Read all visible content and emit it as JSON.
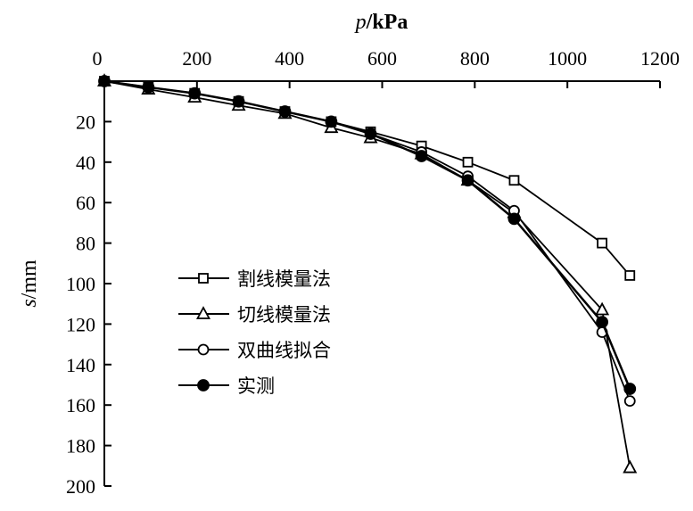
{
  "chart_data": {
    "type": "line",
    "xlabel_italic": "p",
    "xlabel_unit": "/kPa",
    "ylabel_italic": "s",
    "ylabel_unit": "/mm",
    "xlim": [
      0,
      1200
    ],
    "ylim": [
      0,
      200
    ],
    "y_inverted": true,
    "x_axis_position": "top",
    "grid": false,
    "legend_position": "lower-left",
    "xticks": [
      "0",
      "200",
      "400",
      "600",
      "800",
      "1000",
      "1200"
    ],
    "yticks": [
      "20",
      "40",
      "60",
      "80",
      "100",
      "120",
      "140",
      "160",
      "180",
      "200"
    ],
    "x": [
      0,
      95,
      195,
      290,
      390,
      490,
      575,
      685,
      785,
      885,
      1075,
      1135
    ],
    "series": [
      {
        "name": "割线模量法",
        "marker": "square-open",
        "values": [
          0,
          3,
          6,
          10,
          15,
          20,
          25,
          32,
          40,
          49,
          80,
          96
        ]
      },
      {
        "name": "切线模量法",
        "marker": "triangle-open",
        "values": [
          0,
          4,
          8,
          12,
          16,
          23,
          28,
          36,
          49,
          65,
          113,
          191
        ]
      },
      {
        "name": "双曲线拟合",
        "marker": "circle-open",
        "values": [
          0,
          3,
          6,
          10,
          15,
          20,
          26,
          35,
          47,
          64,
          124,
          158
        ]
      },
      {
        "name": "实测",
        "marker": "circle-filled",
        "values": [
          0,
          3,
          6,
          10,
          15,
          20,
          26,
          37,
          49,
          68,
          119,
          152
        ]
      }
    ]
  }
}
